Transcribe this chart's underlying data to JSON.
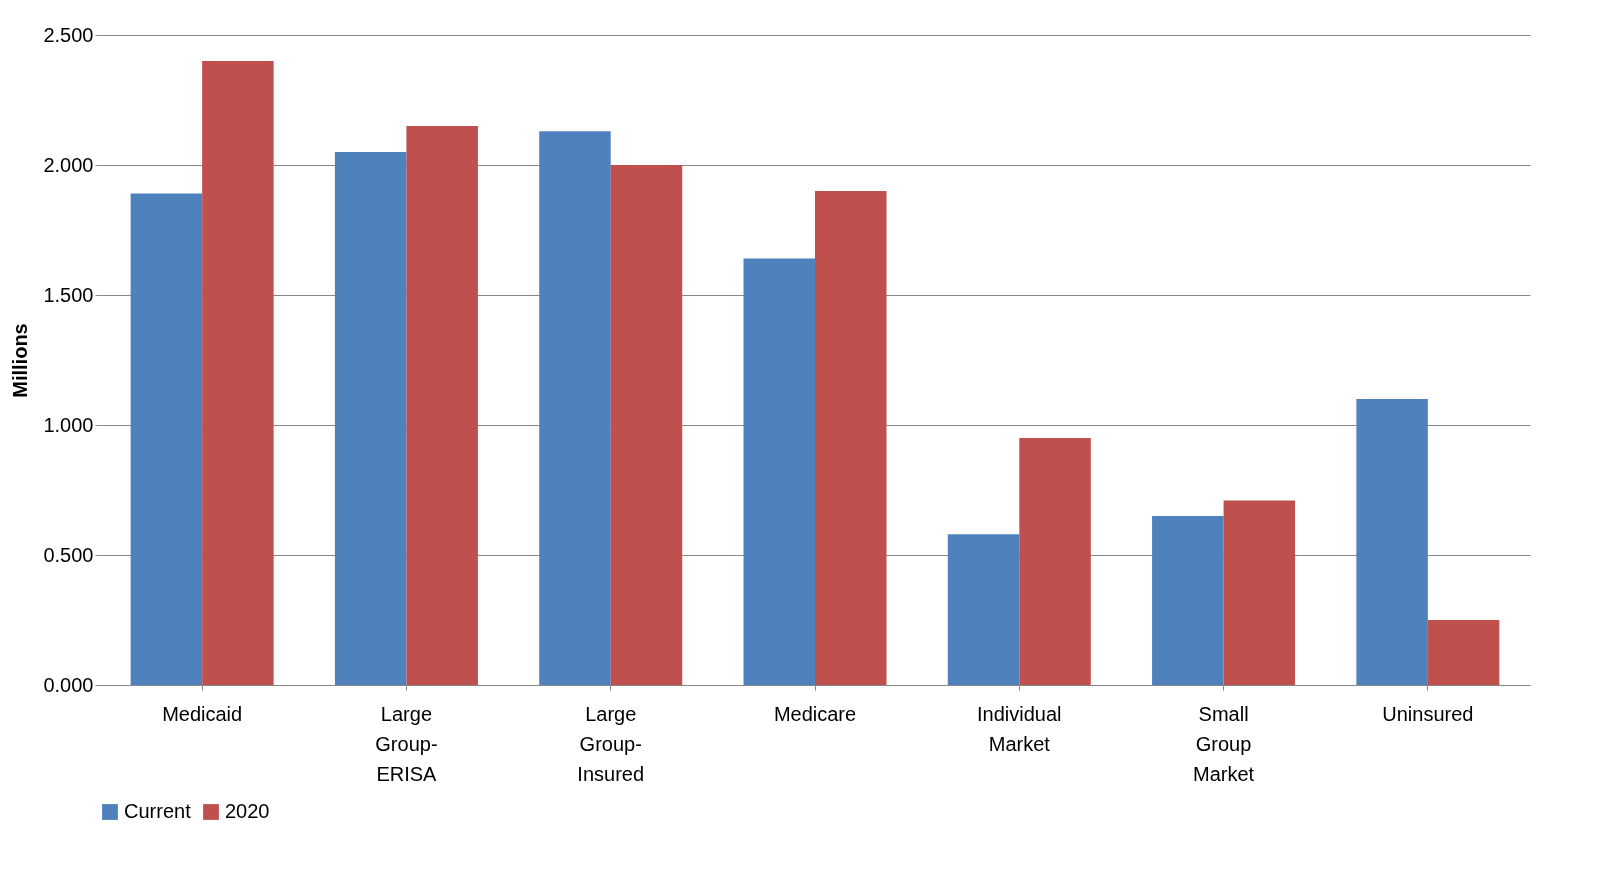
{
  "chart_data": {
    "type": "bar",
    "ylabel": "Millions",
    "categories": [
      "Medicaid",
      "Large Group-ERISA",
      "Large Group-Insured",
      "Medicare",
      "Individual Market",
      "Small Group Market",
      "Uninsured"
    ],
    "series": [
      {
        "name": "Current",
        "color": "#4f81bd",
        "values": [
          1.89,
          2.05,
          2.13,
          1.64,
          0.58,
          0.65,
          1.1
        ]
      },
      {
        "name": "2020",
        "color": "#c0504d",
        "values": [
          2.4,
          2.15,
          2.0,
          1.9,
          0.95,
          0.71,
          0.25
        ]
      }
    ],
    "ylim": [
      0,
      2.5
    ],
    "yticks": [
      {
        "value": 0,
        "label": "0.000"
      },
      {
        "value": 0.5,
        "label": "0.500"
      },
      {
        "value": 1,
        "label": "1.000"
      },
      {
        "value": 1.5,
        "label": "1.500"
      },
      {
        "value": 2,
        "label": "2.000"
      },
      {
        "value": 2.5,
        "label": "2.500"
      }
    ],
    "grid": true,
    "legend": "bottom"
  }
}
